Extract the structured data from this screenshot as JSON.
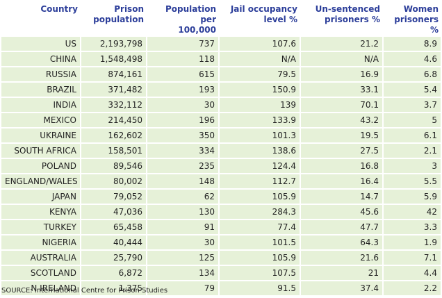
{
  "table": {
    "headers": [
      {
        "lines": [
          "Country"
        ]
      },
      {
        "lines": [
          "Prison",
          "population"
        ]
      },
      {
        "lines": [
          "Population per",
          "100,000"
        ]
      },
      {
        "lines": [
          "Jail occupancy",
          "level %"
        ]
      },
      {
        "lines": [
          "Un-sentenced",
          "prisoners %"
        ]
      },
      {
        "lines": [
          "Women",
          "prisoners %"
        ]
      }
    ],
    "rows": [
      [
        "US",
        "2,193,798",
        "737",
        "107.6",
        "21.2",
        "8.9"
      ],
      [
        "CHINA",
        "1,548,498",
        "118",
        "N/A",
        "N/A",
        "4.6"
      ],
      [
        "RUSSIA",
        "874,161",
        "615",
        "79.5",
        "16.9",
        "6.8"
      ],
      [
        "BRAZIL",
        "371,482",
        "193",
        "150.9",
        "33.1",
        "5.4"
      ],
      [
        "INDIA",
        "332,112",
        "30",
        "139",
        "70.1",
        "3.7"
      ],
      [
        "MEXICO",
        "214,450",
        "196",
        "133.9",
        "43.2",
        "5"
      ],
      [
        "UKRAINE",
        "162,602",
        "350",
        "101.3",
        "19.5",
        "6.1"
      ],
      [
        "SOUTH AFRICA",
        "158,501",
        "334",
        "138.6",
        "27.5",
        "2.1"
      ],
      [
        "POLAND",
        "89,546",
        "235",
        "124.4",
        "16.8",
        "3"
      ],
      [
        "ENGLAND/WALES",
        "80,002",
        "148",
        "112.7",
        "16.4",
        "5.5"
      ],
      [
        "JAPAN",
        "79,052",
        "62",
        "105.9",
        "14.7",
        "5.9"
      ],
      [
        "KENYA",
        "47,036",
        "130",
        "284.3",
        "45.6",
        "42"
      ],
      [
        "TURKEY",
        "65,458",
        "91",
        "77.4",
        "47.7",
        "3.3"
      ],
      [
        "NIGERIA",
        "40,444",
        "30",
        "101.5",
        "64.3",
        "1.9"
      ],
      [
        "AUSTRALIA",
        "25,790",
        "125",
        "105.9",
        "21.6",
        "7.1"
      ],
      [
        "SCOTLAND",
        "6,872",
        "134",
        "107.5",
        "21",
        "4.4"
      ],
      [
        "N IRELAND",
        "1,375",
        "79",
        "91.5",
        "37.4",
        "2.2"
      ]
    ]
  },
  "source": "SOURCE: International Centre for Prison Studies",
  "colors": {
    "header_text": "#2c3e9a",
    "cell_background": "#e6f1d8",
    "cell_text": "#222222"
  }
}
